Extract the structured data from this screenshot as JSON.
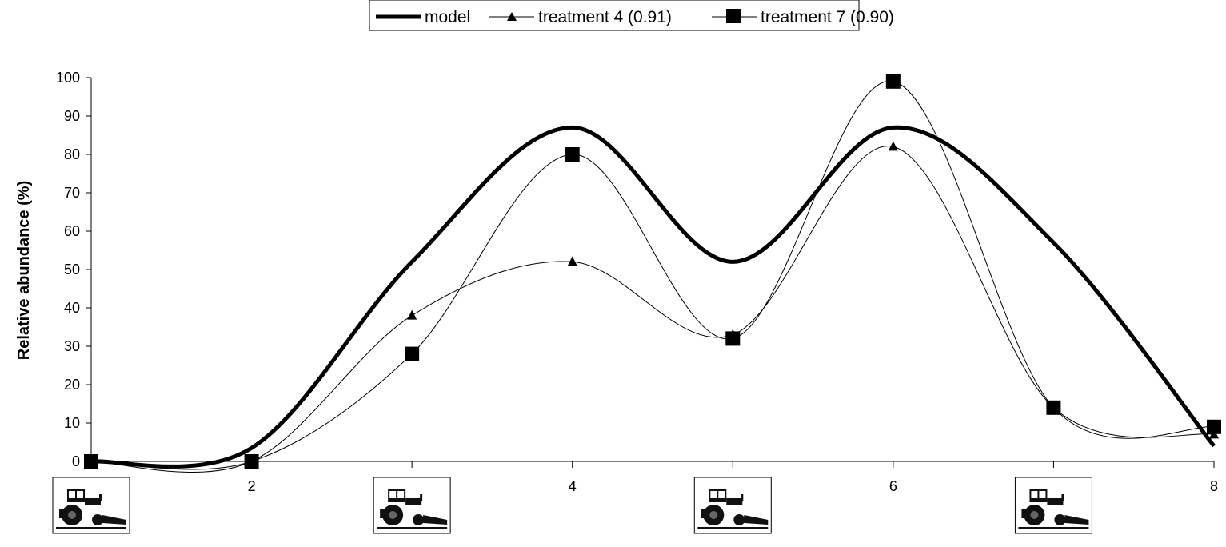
{
  "chart_data": {
    "type": "line",
    "title": "",
    "xlabel": "",
    "ylabel": "Relative abundance (%)",
    "xlim": [
      1,
      8
    ],
    "ylim": [
      0,
      100
    ],
    "y_ticks": [
      "0",
      "10",
      "20",
      "30",
      "40",
      "50",
      "60",
      "70",
      "80",
      "90",
      "100"
    ],
    "x_tick_labels": [
      {
        "x": 2,
        "label": "2"
      },
      {
        "x": 4,
        "label": "4"
      },
      {
        "x": 6,
        "label": "6"
      },
      {
        "x": 8,
        "label": "8"
      }
    ],
    "x_tick_icons": [
      {
        "x": 1,
        "icon": "tractor-icon"
      },
      {
        "x": 3,
        "icon": "tractor-icon"
      },
      {
        "x": 5,
        "icon": "tractor-icon"
      },
      {
        "x": 7,
        "icon": "tractor-icon"
      }
    ],
    "grid": false,
    "legend_position": "top-center",
    "series": [
      {
        "name": "model",
        "style": "thick-line",
        "color": "#000000",
        "x": [
          1,
          2,
          3,
          4,
          5,
          6,
          7,
          8
        ],
        "y": [
          0,
          3.5,
          52,
          87,
          52,
          87,
          57,
          4
        ]
      },
      {
        "name": "treatment 4 (0.91)",
        "style": "thin-line-triangle",
        "color": "#000000",
        "x": [
          1,
          2,
          3,
          4,
          5,
          6,
          7,
          8
        ],
        "y": [
          0,
          0,
          38,
          52,
          33,
          82,
          14,
          7
        ]
      },
      {
        "name": "treatment 7 (0.90)",
        "style": "thin-line-square",
        "color": "#000000",
        "x": [
          1,
          2,
          3,
          4,
          5,
          6,
          7,
          8
        ],
        "y": [
          0,
          0,
          28,
          80,
          32,
          99,
          14,
          9
        ]
      }
    ]
  }
}
